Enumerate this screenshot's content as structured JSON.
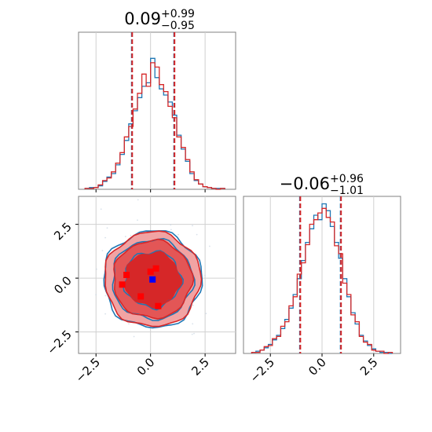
{
  "chart_data": [
    {
      "type": "histogram",
      "panel": "marginal-x",
      "title": {
        "value": "0.09",
        "upper": "+0.99",
        "lower": "−0.95"
      },
      "xlim": [
        -3.3,
        3.9
      ],
      "quantile_lines": [
        -0.86,
        0.09,
        1.08
      ],
      "series": [
        {
          "color": "#1f77b4",
          "bin_edges": [
            -3.0,
            -2.8,
            -2.6,
            -2.4,
            -2.2,
            -2.0,
            -1.8,
            -1.6,
            -1.4,
            -1.2,
            -1.0,
            -0.8,
            -0.6,
            -0.4,
            -0.2,
            0.0,
            0.2,
            0.4,
            0.6,
            0.8,
            1.0,
            1.2,
            1.4,
            1.6,
            1.8,
            2.0,
            2.2,
            2.4,
            2.6,
            2.8,
            3.0,
            3.2,
            3.4
          ],
          "counts": [
            1,
            2,
            2,
            4,
            9,
            14,
            18,
            28,
            40,
            56,
            75,
            90,
            105,
            118,
            122,
            150,
            128,
            115,
            108,
            100,
            85,
            62,
            46,
            32,
            18,
            10,
            6,
            3,
            2,
            1,
            1,
            1
          ]
        },
        {
          "color": "#d62728",
          "bin_edges": [
            -3.0,
            -2.8,
            -2.6,
            -2.4,
            -2.2,
            -2.0,
            -1.8,
            -1.6,
            -1.4,
            -1.2,
            -1.0,
            -0.8,
            -0.6,
            -0.4,
            -0.2,
            0.0,
            0.2,
            0.4,
            0.6,
            0.8,
            1.0,
            1.2,
            1.4,
            1.6,
            1.8,
            2.0,
            2.2,
            2.4,
            2.6,
            2.8,
            3.0,
            3.2,
            3.4
          ],
          "counts": [
            1,
            1,
            2,
            5,
            10,
            13,
            20,
            30,
            42,
            60,
            72,
            92,
            110,
            132,
            118,
            145,
            140,
            120,
            112,
            95,
            82,
            60,
            48,
            34,
            20,
            11,
            6,
            3,
            2,
            1,
            0,
            1
          ]
        }
      ]
    },
    {
      "type": "histogram",
      "panel": "marginal-y",
      "title": {
        "value": "−0.06",
        "upper": "+0.96",
        "lower": "−1.01"
      },
      "xlim": [
        -3.8,
        3.8
      ],
      "xticks": [
        -2.5,
        0.0,
        2.5
      ],
      "xtick_labels": [
        "−2.5",
        "0.0",
        "2.5"
      ],
      "quantile_lines": [
        -1.07,
        -0.06,
        0.9
      ],
      "series": [
        {
          "color": "#1f77b4",
          "bin_edges": [
            -3.4,
            -3.2,
            -3.0,
            -2.8,
            -2.6,
            -2.4,
            -2.2,
            -2.0,
            -1.8,
            -1.6,
            -1.4,
            -1.2,
            -1.0,
            -0.8,
            -0.6,
            -0.4,
            -0.2,
            0.0,
            0.2,
            0.4,
            0.6,
            0.8,
            1.0,
            1.2,
            1.4,
            1.6,
            1.8,
            2.0,
            2.2,
            2.4,
            2.6,
            2.8,
            3.0,
            3.2,
            3.4
          ],
          "counts": [
            1,
            2,
            3,
            5,
            8,
            12,
            16,
            22,
            30,
            40,
            52,
            66,
            82,
            98,
            110,
            122,
            118,
            132,
            126,
            112,
            98,
            84,
            66,
            50,
            36,
            26,
            16,
            11,
            7,
            4,
            2,
            1,
            1,
            0
          ]
        },
        {
          "color": "#d62728",
          "bin_edges": [
            -3.4,
            -3.2,
            -3.0,
            -2.8,
            -2.6,
            -2.4,
            -2.2,
            -2.0,
            -1.8,
            -1.6,
            -1.4,
            -1.2,
            -1.0,
            -0.8,
            -0.6,
            -0.4,
            -0.2,
            0.0,
            0.2,
            0.4,
            0.6,
            0.8,
            1.0,
            1.2,
            1.4,
            1.6,
            1.8,
            2.0,
            2.2,
            2.4,
            2.6,
            2.8,
            3.0,
            3.2,
            3.4
          ],
          "counts": [
            1,
            1,
            3,
            6,
            7,
            13,
            15,
            24,
            28,
            42,
            50,
            70,
            80,
            96,
            114,
            118,
            124,
            128,
            120,
            116,
            95,
            88,
            62,
            52,
            34,
            28,
            15,
            10,
            8,
            3,
            2,
            2,
            0,
            1
          ]
        }
      ]
    },
    {
      "type": "contour",
      "panel": "joint",
      "xlim": [
        -3.3,
        3.9
      ],
      "ylim": [
        -3.5,
        3.8
      ],
      "xticks": [
        -2.5,
        0.0,
        2.5
      ],
      "xtick_labels": [
        "−2.5",
        "0.0",
        "2.5"
      ],
      "yticks": [
        -2.5,
        0.0,
        2.5
      ],
      "ytick_labels": [
        "−2.5",
        "0.0",
        "2.5"
      ],
      "contour_radii": [
        1.0,
        1.8,
        2.2
      ],
      "center": [
        0.09,
        -0.06
      ],
      "highlight_points": [
        {
          "x": -1.1,
          "y": 0.15
        },
        {
          "x": 0.0,
          "y": 0.3
        },
        {
          "x": 0.25,
          "y": 0.45
        },
        {
          "x": -0.45,
          "y": -0.85
        },
        {
          "x": 0.35,
          "y": -1.3
        },
        {
          "x": -1.3,
          "y": -0.3
        }
      ],
      "truth_point": {
        "x": 0.09,
        "y": -0.06,
        "color": "#0000ff"
      },
      "colors": {
        "blue": "#1f77b4",
        "red": "#d62728",
        "fill_outer": "#f2a3a3",
        "fill_mid": "#e35656",
        "fill_inner": "#d62728"
      }
    }
  ]
}
